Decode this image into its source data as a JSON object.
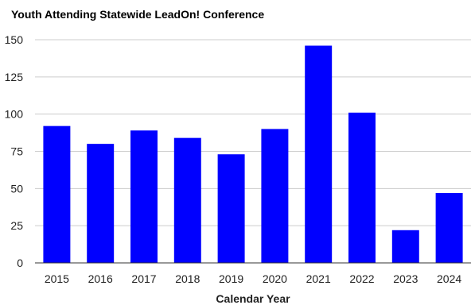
{
  "chart_data": {
    "type": "bar",
    "title": "Youth Attending Statewide LeadOn! Conference",
    "xlabel": "Calendar Year",
    "ylabel": "",
    "categories": [
      "2015",
      "2016",
      "2017",
      "2018",
      "2019",
      "2020",
      "2021",
      "2022",
      "2023",
      "2024"
    ],
    "values": [
      92,
      80,
      89,
      84,
      73,
      90,
      146,
      101,
      22,
      47
    ],
    "ylim": [
      0,
      150
    ],
    "yticks": [
      "0",
      "25",
      "50",
      "75",
      "100",
      "125",
      "150"
    ],
    "bar_color": "#0000ff",
    "grid": true,
    "legend": "none"
  }
}
